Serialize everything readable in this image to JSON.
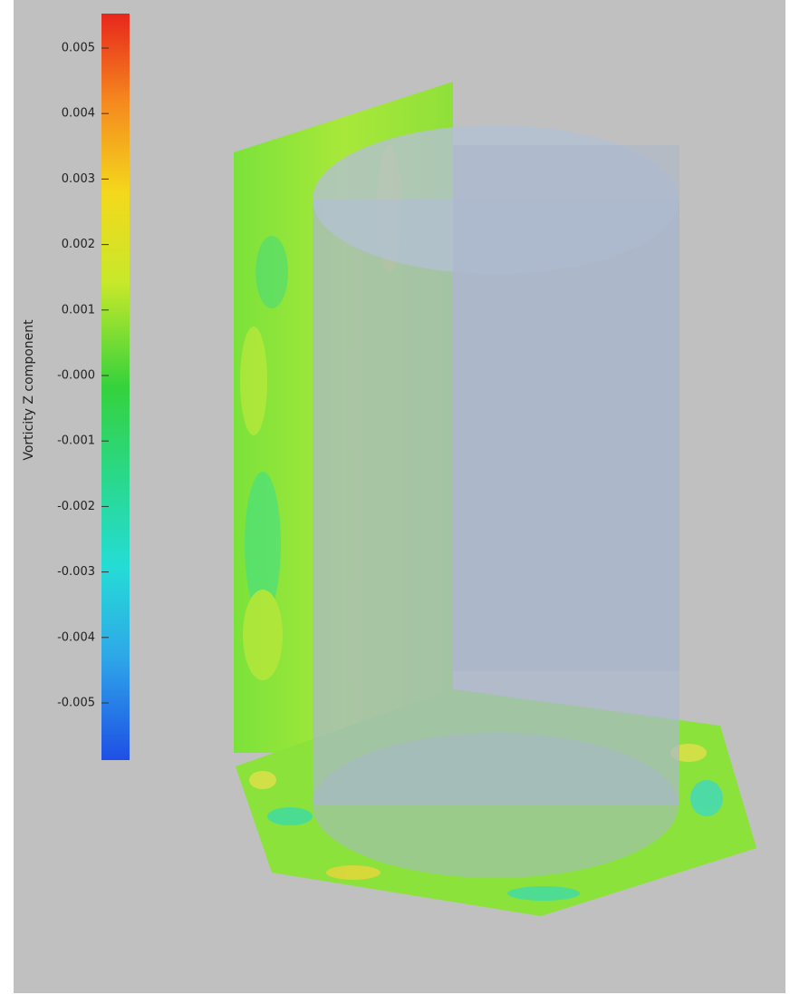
{
  "colorbar": {
    "title": "Vorticity Z component",
    "ticks": [
      "0.005",
      "0.004",
      "0.003",
      "0.002",
      "0.001",
      "-0.000",
      "-0.001",
      "-0.002",
      "-0.003",
      "-0.004",
      "-0.005"
    ]
  }
}
